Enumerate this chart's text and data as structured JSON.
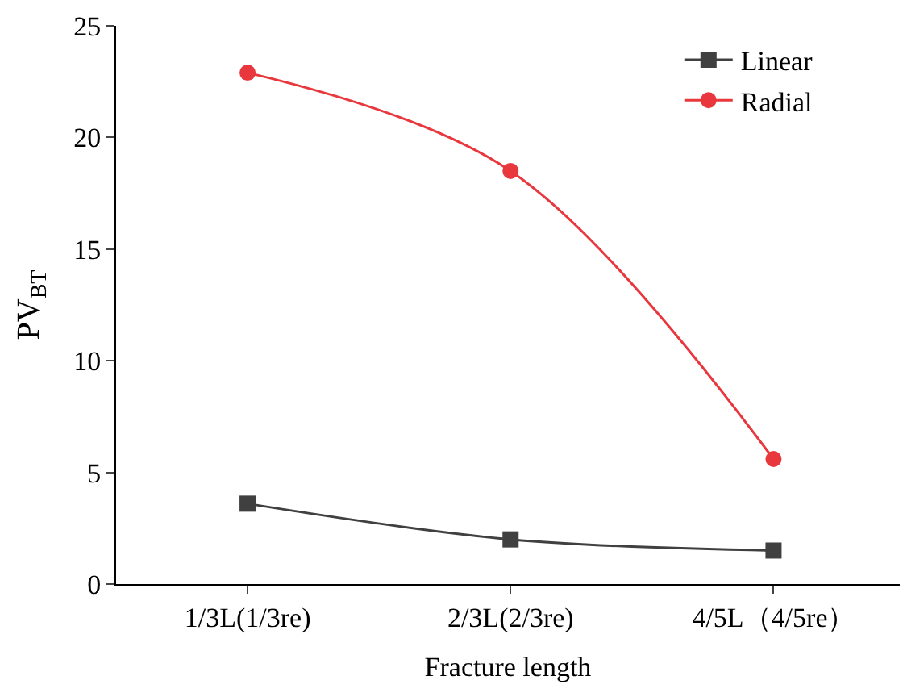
{
  "chart_data": {
    "type": "line",
    "xlabel": "Fracture length",
    "ylabel": "PV$_{BT}$",
    "categories": [
      "1/3L(1/3re)",
      "2/3L(2/3re)",
      "4/5L（4/5re）"
    ],
    "series": [
      {
        "name": "Linear",
        "color": "#404040",
        "marker": "square",
        "values": [
          3.6,
          2.0,
          1.5
        ]
      },
      {
        "name": "Radial",
        "color": "#e8383d",
        "marker": "circle",
        "values": [
          22.9,
          18.5,
          5.6
        ]
      }
    ],
    "ylim": [
      0,
      25
    ],
    "yticks": [
      0,
      5,
      10,
      15,
      20,
      25
    ],
    "legend": "top right",
    "line_style": "solid"
  }
}
